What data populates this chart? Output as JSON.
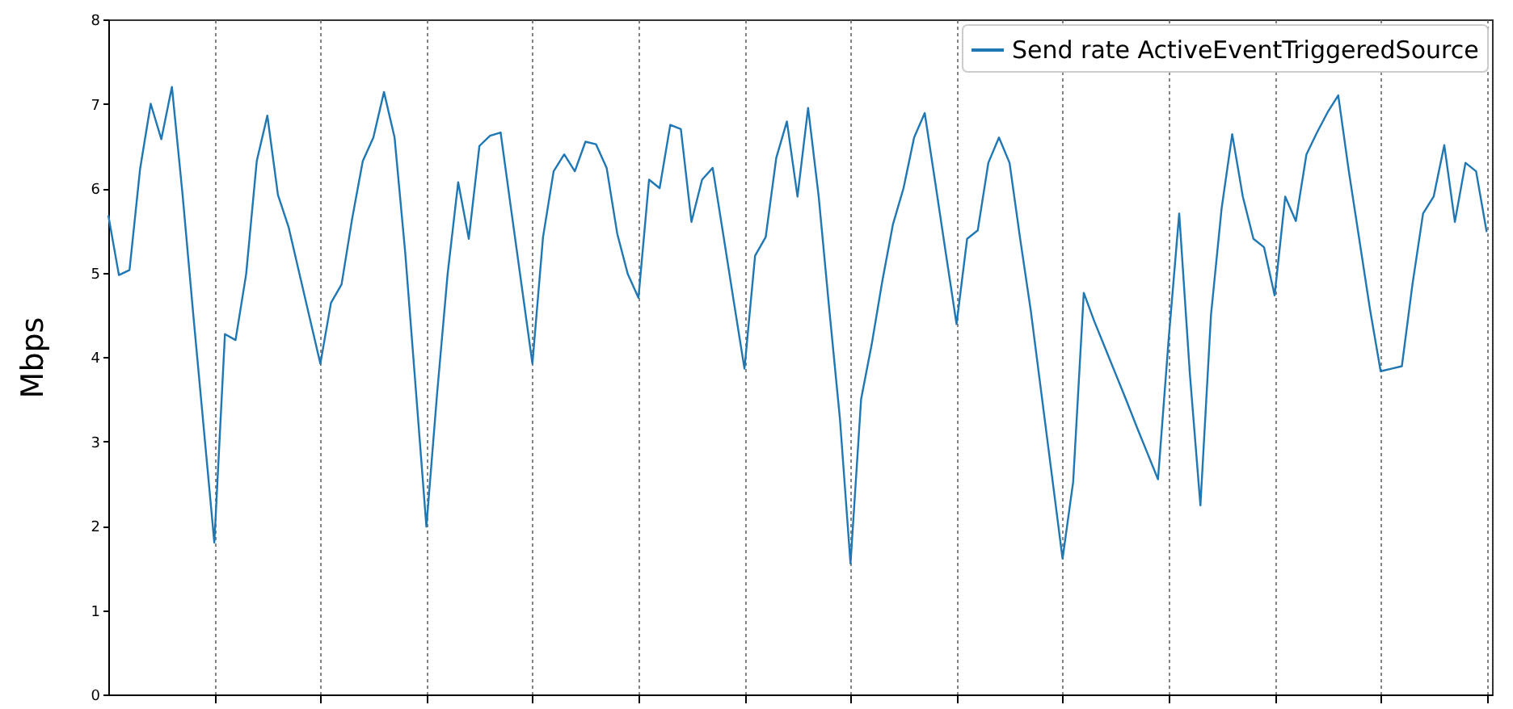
{
  "chart_data": {
    "type": "line",
    "ylabel": "Mbps",
    "categories": [
      null,
      null,
      null,
      null,
      null,
      null,
      null,
      null,
      null,
      null,
      null,
      null,
      null,
      null,
      null,
      null,
      null,
      null,
      null,
      null,
      null,
      null,
      null,
      null,
      null,
      null,
      null,
      null,
      null,
      null,
      null,
      null,
      null,
      null,
      null,
      null,
      null,
      null,
      null,
      null,
      null,
      null,
      null,
      null,
      null,
      null,
      null,
      null,
      null,
      null,
      null,
      null,
      null,
      null,
      null,
      null,
      null,
      null,
      null,
      null,
      null,
      null,
      null,
      null,
      null,
      null,
      null,
      null,
      null,
      null,
      null,
      null,
      null,
      null,
      null,
      null,
      null,
      null,
      null,
      null,
      null,
      null,
      null,
      null,
      null,
      null,
      null,
      null,
      null,
      null,
      null,
      null,
      null,
      null,
      null,
      null,
      null,
      null,
      null,
      null,
      null,
      null,
      null,
      null,
      null,
      null,
      null,
      null,
      null,
      null,
      null,
      null,
      null,
      null,
      null,
      null,
      null,
      null,
      null,
      null,
      null,
      null,
      null,
      null,
      null,
      null,
      null,
      null,
      null,
      null,
      null
    ],
    "series": [
      {
        "name": "Send rate ActiveEventTriggeredSource",
        "color": "#1f77b4",
        "values": [
          5.68,
          4.97,
          5.03,
          6.23,
          7.0,
          6.58,
          7.2,
          5.93,
          4.52,
          3.16,
          1.8,
          4.27,
          4.2,
          4.98,
          6.32,
          6.86,
          5.92,
          5.54,
          5.0,
          4.46,
          3.92,
          4.64,
          4.86,
          5.64,
          6.32,
          6.6,
          7.14,
          6.6,
          5.24,
          3.62,
          1.99,
          3.55,
          4.98,
          6.07,
          5.4,
          6.5,
          6.62,
          6.66,
          5.74,
          4.83,
          3.92,
          5.42,
          6.2,
          6.4,
          6.2,
          6.55,
          6.52,
          6.24,
          5.46,
          4.98,
          4.7,
          6.1,
          6.0,
          6.75,
          6.7,
          5.6,
          6.1,
          6.24,
          5.45,
          4.65,
          3.86,
          5.2,
          5.42,
          6.36,
          6.79,
          5.9,
          6.95,
          5.9,
          4.56,
          3.27,
          1.55,
          3.5,
          4.15,
          4.9,
          5.57,
          6.0,
          6.6,
          6.89,
          6.06,
          5.22,
          4.39,
          5.4,
          5.5,
          6.3,
          6.6,
          6.3,
          5.4,
          4.55,
          3.57,
          2.59,
          1.61,
          2.52,
          4.76,
          4.42,
          4.11,
          3.8,
          3.49,
          3.17,
          2.86,
          2.55,
          4.2,
          5.7,
          3.81,
          2.24,
          4.5,
          5.76,
          6.64,
          5.9,
          5.4,
          5.3,
          4.73,
          5.9,
          5.61,
          6.4,
          6.66,
          6.9,
          7.1,
          6.2,
          5.38,
          4.56,
          3.83,
          3.86,
          3.89,
          4.86,
          5.7,
          5.9,
          6.51,
          5.6,
          6.3,
          6.2,
          5.48
        ]
      }
    ],
    "ylim": [
      0,
      8
    ],
    "yticks": [
      0,
      1,
      2,
      3,
      4,
      5,
      6,
      7,
      8
    ],
    "grid": "x",
    "legend": "top right",
    "tick_labels": "y"
  }
}
